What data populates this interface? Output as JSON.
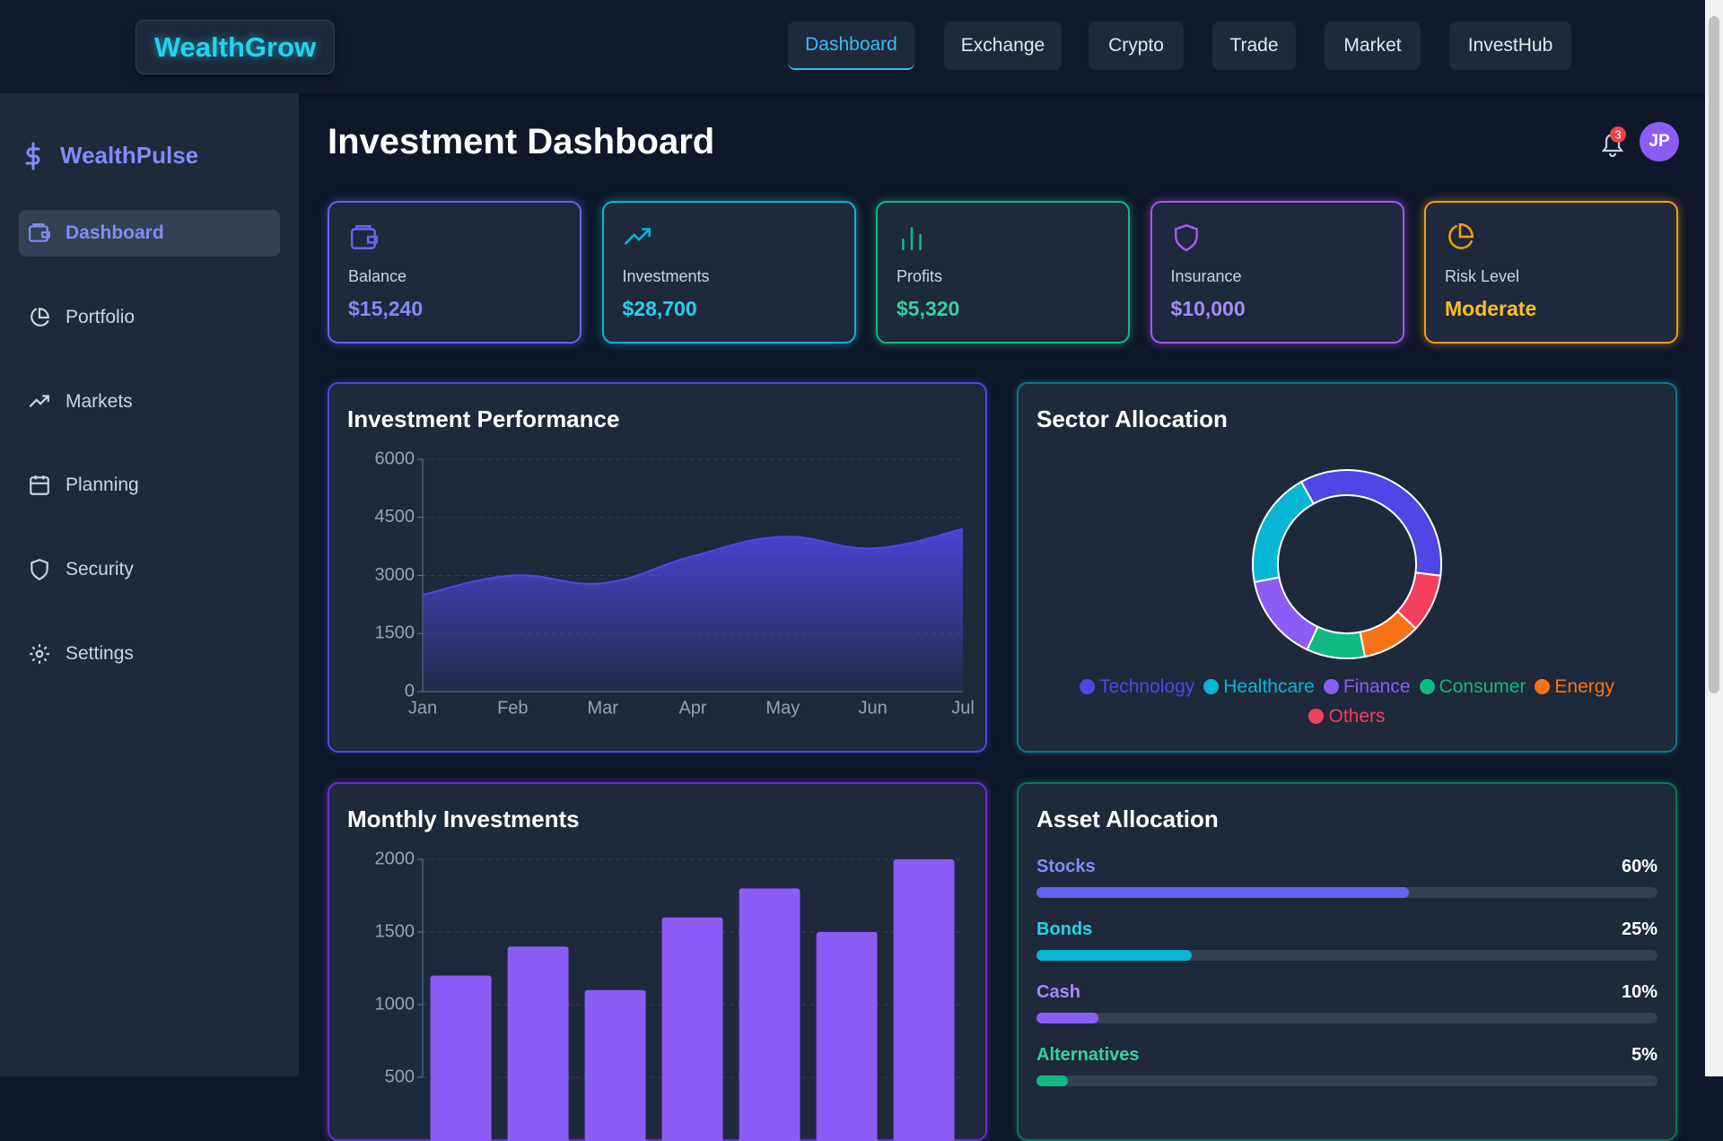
{
  "header": {
    "logo": "WealthGrow",
    "nav": [
      "Dashboard",
      "Exchange",
      "Crypto",
      "Trade",
      "Market",
      "InvestHub"
    ]
  },
  "sidebar": {
    "brand": "WealthPulse",
    "items": [
      "Dashboard",
      "Portfolio",
      "Markets",
      "Planning",
      "Security",
      "Settings"
    ]
  },
  "main": {
    "title": "Investment Dashboard",
    "notifications": 3,
    "avatar": "JP",
    "cards": [
      {
        "label": "Balance",
        "value": "$15,240"
      },
      {
        "label": "Investments",
        "value": "$28,700"
      },
      {
        "label": "Profits",
        "value": "$5,320"
      },
      {
        "label": "Insurance",
        "value": "$10,000"
      },
      {
        "label": "Risk Level",
        "value": "Moderate"
      }
    ]
  },
  "chart_data": [
    {
      "type": "area",
      "title": "Investment Performance",
      "categories": [
        "Jan",
        "Feb",
        "Mar",
        "Apr",
        "May",
        "Jun",
        "Jul"
      ],
      "values": [
        2500,
        3000,
        2800,
        3500,
        4000,
        3700,
        4200
      ],
      "color": "#4f46e5",
      "ylim": [
        0,
        6000
      ],
      "yticks": [
        0,
        1500,
        3000,
        4500,
        6000
      ],
      "grid": true
    },
    {
      "type": "doughnut",
      "title": "Sector Allocation",
      "categories": [
        "Technology",
        "Healthcare",
        "Finance",
        "Consumer",
        "Energy",
        "Others"
      ],
      "values": [
        35,
        20,
        15,
        10,
        10,
        10
      ],
      "colors": [
        "#4f46e5",
        "#06b6d4",
        "#8b5cf6",
        "#10b981",
        "#f97316",
        "#f43f5e"
      ]
    },
    {
      "type": "bar",
      "title": "Monthly Investments",
      "values": [
        1200,
        1400,
        1100,
        1600,
        1800,
        1500,
        2000
      ],
      "color": "#8b5cf6",
      "ylim": [
        0,
        2000
      ],
      "yticks": [
        500,
        1000,
        1500,
        2000
      ],
      "grid": true
    },
    {
      "type": "progress",
      "title": "Asset Allocation",
      "categories": [
        "Stocks",
        "Bonds",
        "Cash",
        "Alternatives"
      ],
      "values": [
        60,
        25,
        10,
        5
      ],
      "value_labels": [
        "60%",
        "25%",
        "10%",
        "5%"
      ],
      "colors": [
        "#6366f1",
        "#06b6d4",
        "#8b5cf6",
        "#10b981"
      ],
      "label_colors": [
        "#818cf8",
        "#22d3ee",
        "#a78bfa",
        "#34d399"
      ]
    }
  ]
}
